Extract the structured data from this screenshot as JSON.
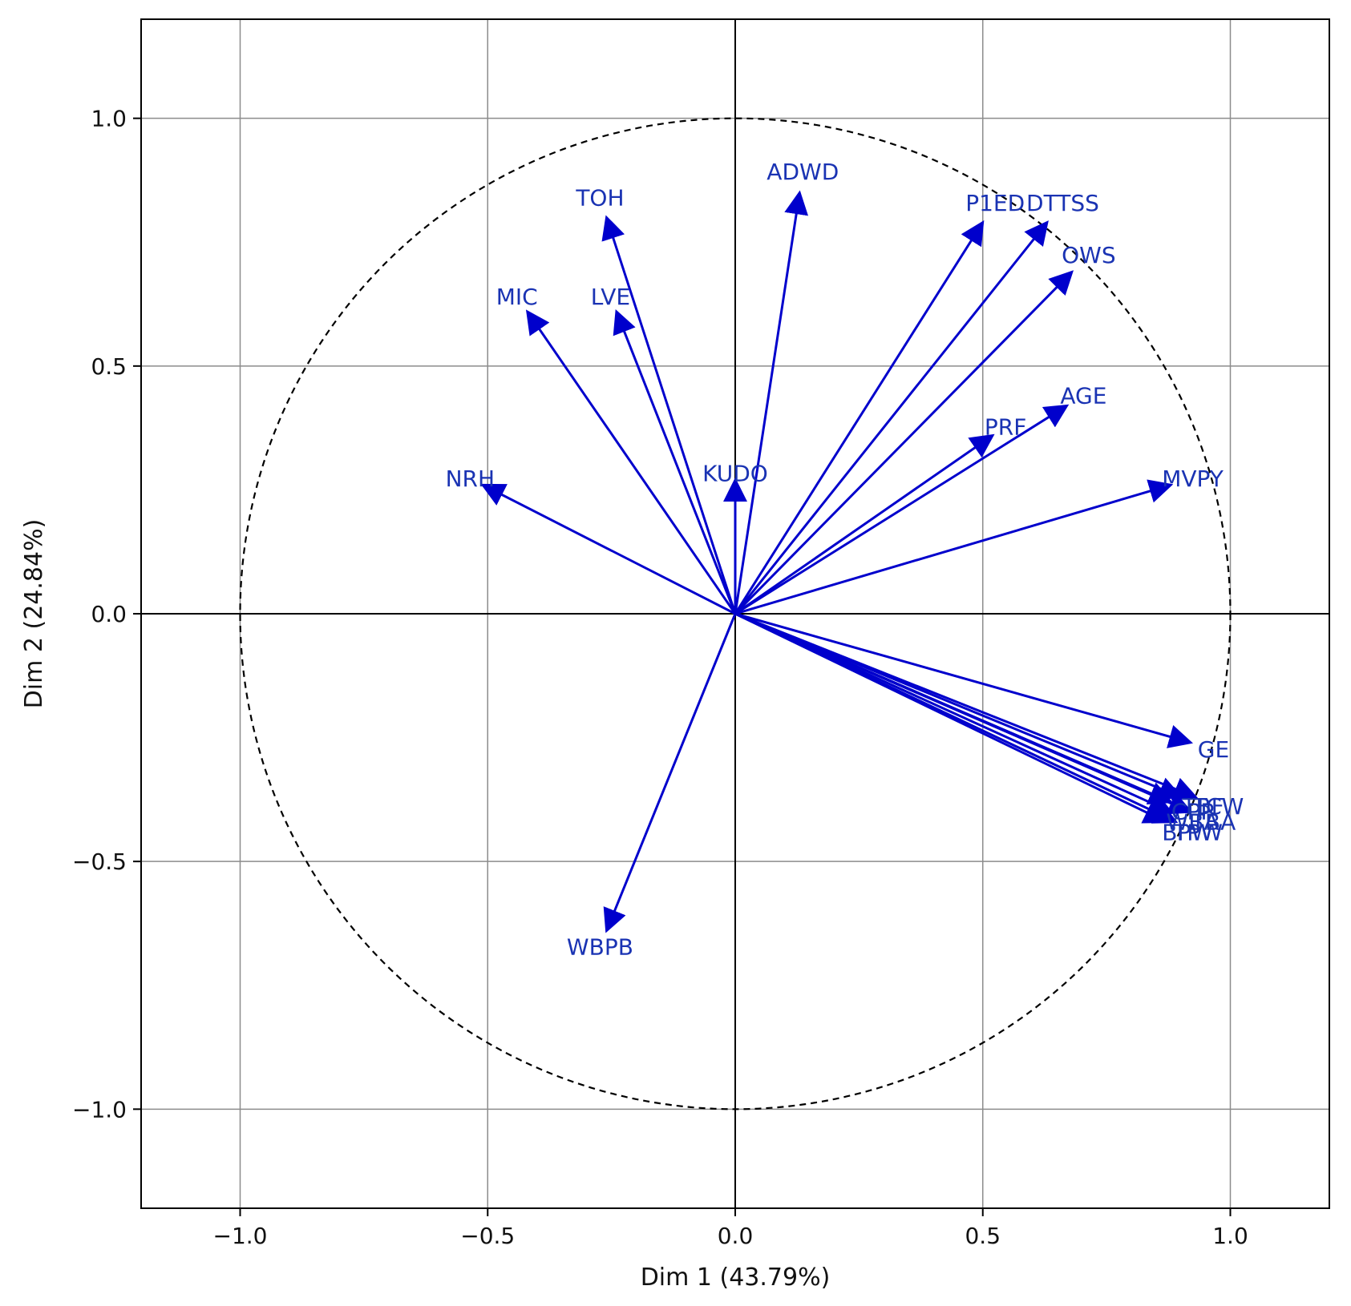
{
  "chart_data": {
    "type": "scatter",
    "subtype": "pca-correlation-circle",
    "title": "",
    "xlabel": "Dim 1 (43.79%)",
    "ylabel": "Dim 2 (24.84%)",
    "xlim": [
      -1.2,
      1.2
    ],
    "ylim": [
      -1.2,
      1.2
    ],
    "xticks": [
      -1.0,
      -0.5,
      0.0,
      0.5,
      1.0
    ],
    "yticks": [
      -1.0,
      -0.5,
      0.0,
      0.5,
      1.0
    ],
    "xtick_labels": [
      "−1.0",
      "−0.5",
      "0.0",
      "0.5",
      "1.0"
    ],
    "ytick_labels": [
      "−1.0",
      "−0.5",
      "0.0",
      "0.5",
      "1.0"
    ],
    "grid": true,
    "unit_circle": true,
    "arrow_color": "#0000cc",
    "label_color": "#1a33b3",
    "variables": [
      {
        "name": "ADWD",
        "x": 0.13,
        "y": 0.85
      },
      {
        "name": "TOH",
        "x": -0.26,
        "y": 0.8
      },
      {
        "name": "P1ED",
        "x": 0.5,
        "y": 0.79
      },
      {
        "name": "DTTSS",
        "x": 0.63,
        "y": 0.79
      },
      {
        "name": "OWS",
        "x": 0.68,
        "y": 0.69
      },
      {
        "name": "MIC",
        "x": -0.42,
        "y": 0.61
      },
      {
        "name": "LVE",
        "x": -0.24,
        "y": 0.61
      },
      {
        "name": "AGE",
        "x": 0.67,
        "y": 0.42
      },
      {
        "name": "PRF",
        "x": 0.52,
        "y": 0.36
      },
      {
        "name": "NRH",
        "x": -0.51,
        "y": 0.26
      },
      {
        "name": "KUDO",
        "x": 0.0,
        "y": 0.27
      },
      {
        "name": "MVPY",
        "x": 0.88,
        "y": 0.26
      },
      {
        "name": "GE",
        "x": 0.92,
        "y": -0.26
      },
      {
        "name": "TCW",
        "x": 0.93,
        "y": -0.37
      },
      {
        "name": "TBF",
        "x": 0.9,
        "y": -0.37
      },
      {
        "name": "CPP",
        "x": 0.88,
        "y": -0.38
      },
      {
        "name": "TBA",
        "x": 0.92,
        "y": -0.4
      },
      {
        "name": "WBA",
        "x": 0.88,
        "y": -0.4
      },
      {
        "name": "TPW",
        "x": 0.89,
        "y": -0.42
      },
      {
        "name": "BPW",
        "x": 0.87,
        "y": -0.42
      },
      {
        "name": "WBPB",
        "x": -0.26,
        "y": -0.64
      }
    ]
  }
}
